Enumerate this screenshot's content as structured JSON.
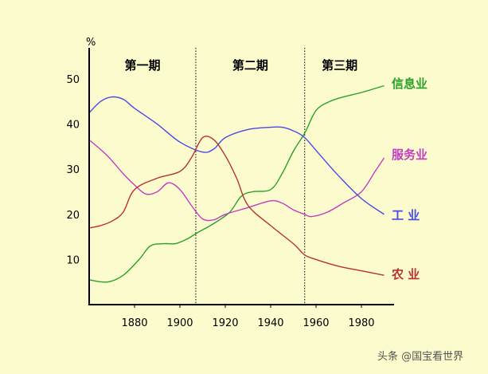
{
  "chart_data": {
    "type": "line",
    "ylabel": "%",
    "xlim": [
      1860,
      1990
    ],
    "ylim": [
      0,
      55
    ],
    "x_ticks": [
      "1880",
      "1900",
      "1920",
      "1940",
      "1960",
      "1980"
    ],
    "y_ticks": [
      "10",
      "20",
      "30",
      "40",
      "50"
    ],
    "period_dividers": [
      1907,
      1955
    ],
    "periods": [
      "第一期",
      "第二期",
      "第三期"
    ],
    "series": [
      {
        "name": "信息业",
        "color": "#2aa12a",
        "x": [
          1860,
          1868,
          1875,
          1882,
          1887,
          1893,
          1898,
          1903,
          1908,
          1915,
          1922,
          1927,
          1932,
          1940,
          1945,
          1950,
          1955,
          1960,
          1966,
          1972,
          1980,
          1990
        ],
        "y": [
          5.5,
          5,
          6.5,
          10,
          13,
          13.5,
          13.5,
          14.5,
          16,
          18,
          20.5,
          24,
          25,
          25.5,
          29,
          34,
          38,
          43,
          45,
          46,
          47,
          48.5
        ]
      },
      {
        "name": "服务业",
        "color": "#c43cc4",
        "x": [
          1860,
          1868,
          1875,
          1880,
          1885,
          1890,
          1895,
          1900,
          1905,
          1910,
          1915,
          1920,
          1930,
          1940,
          1945,
          1950,
          1955,
          1958,
          1965,
          1972,
          1980,
          1986,
          1990
        ],
        "y": [
          36.5,
          33,
          29,
          26.5,
          24.5,
          25,
          27,
          25.5,
          22,
          19,
          18.8,
          20,
          21.5,
          23,
          22.5,
          21,
          20,
          19.5,
          20.5,
          22.5,
          25,
          29.5,
          32.5
        ]
      },
      {
        "name": "工  业",
        "color": "#4a4ae6",
        "x": [
          1860,
          1865,
          1870,
          1875,
          1880,
          1890,
          1900,
          1910,
          1915,
          1920,
          1930,
          1940,
          1945,
          1950,
          1955,
          1962,
          1970,
          1980,
          1990
        ],
        "y": [
          42.5,
          45,
          46,
          45.5,
          43.5,
          40,
          36,
          33.8,
          34.5,
          37,
          38.8,
          39.3,
          39.3,
          38.5,
          37,
          33,
          28.5,
          23.5,
          20
        ]
      },
      {
        "name": "农  业",
        "color": "#b83232",
        "x": [
          1860,
          1865,
          1870,
          1875,
          1880,
          1890,
          1900,
          1905,
          1910,
          1915,
          1920,
          1925,
          1930,
          1940,
          1950,
          1955,
          1960,
          1970,
          1980,
          1990
        ],
        "y": [
          17,
          17.5,
          18.5,
          20.5,
          25.5,
          28,
          29.5,
          32.5,
          37,
          36.5,
          33,
          28,
          22,
          17.5,
          13.5,
          11,
          10,
          8.5,
          7.5,
          6.5
        ]
      }
    ]
  },
  "watermark": "头条 @国宝看世界"
}
